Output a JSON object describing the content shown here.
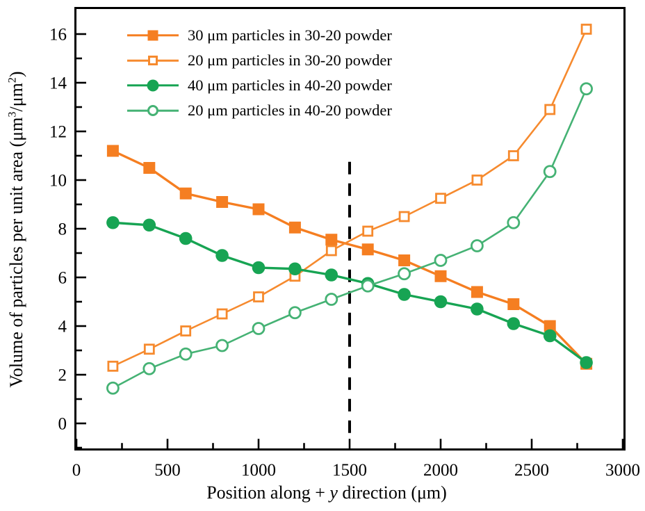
{
  "figure": {
    "background_color": "#ffffff",
    "axis_color": "#000000",
    "text_color": "#000000"
  },
  "chart_data": {
    "type": "line",
    "title": "",
    "xlabel": "Position along + y direction (μm)",
    "ylabel": "Volume of particles per unit area (μm³/μm²)",
    "xlabel_runs": [
      {
        "t": "Position along + "
      },
      {
        "t": "y",
        "italic": true
      },
      {
        "t": " direction (μm)"
      }
    ],
    "ylabel_runs": [
      {
        "t": "Volume of particles per unit area (μm"
      },
      {
        "t": "3",
        "sup": true
      },
      {
        "t": "/μm"
      },
      {
        "t": "2",
        "sup": true
      },
      {
        "t": ")"
      }
    ],
    "xlim": [
      0,
      3000
    ],
    "ylim": [
      0,
      16
    ],
    "x_major_ticks": [
      0,
      500,
      1000,
      1500,
      2000,
      2500,
      3000
    ],
    "x_minor_ticks": [
      250,
      750,
      1250,
      1750,
      2250,
      2750
    ],
    "y_major_ticks": [
      0,
      2,
      4,
      6,
      8,
      10,
      12,
      14,
      16
    ],
    "y_minor_ticks": [
      -1,
      1,
      3,
      5,
      7,
      9,
      11,
      13,
      15
    ],
    "grid": false,
    "legend_position": "upper-left-inside",
    "x": [
      200,
      400,
      600,
      800,
      1000,
      1200,
      1400,
      1600,
      1800,
      2000,
      2200,
      2400,
      2600,
      2800
    ],
    "series": [
      {
        "name": "30 μm particles in 30-20 powder",
        "color": "#F57E21",
        "marker": "square-filled",
        "line_width": 3.4,
        "values": [
          11.2,
          10.5,
          9.45,
          9.1,
          8.8,
          8.05,
          7.55,
          7.15,
          6.7,
          6.05,
          5.4,
          4.9,
          4.0,
          2.45
        ]
      },
      {
        "name": "20 μm particles in 30-20 powder",
        "color": "#F68A2E",
        "marker": "square-open",
        "line_width": 2.6,
        "values": [
          2.35,
          3.05,
          3.8,
          4.5,
          5.2,
          6.05,
          7.1,
          7.9,
          8.5,
          9.25,
          10.0,
          11.0,
          12.9,
          16.2
        ]
      },
      {
        "name": "40 μm particles in 40-20 powder",
        "color": "#17A453",
        "marker": "circle-filled",
        "line_width": 3.4,
        "values": [
          8.25,
          8.15,
          7.6,
          6.9,
          6.4,
          6.35,
          6.1,
          5.75,
          5.3,
          5.0,
          4.7,
          4.1,
          3.6,
          2.5
        ]
      },
      {
        "name": "20 μm particles in 40-20 powder",
        "color": "#45B274",
        "marker": "circle-open",
        "line_width": 2.6,
        "values": [
          1.45,
          2.25,
          2.85,
          3.2,
          3.9,
          4.55,
          5.1,
          5.65,
          6.15,
          6.7,
          7.3,
          8.25,
          10.35,
          13.75
        ]
      }
    ],
    "annotations": [
      {
        "type": "vertical-dashed-line",
        "x": 1500,
        "color": "#000000",
        "y_from": -0.4,
        "y_to": 10.75
      }
    ]
  }
}
